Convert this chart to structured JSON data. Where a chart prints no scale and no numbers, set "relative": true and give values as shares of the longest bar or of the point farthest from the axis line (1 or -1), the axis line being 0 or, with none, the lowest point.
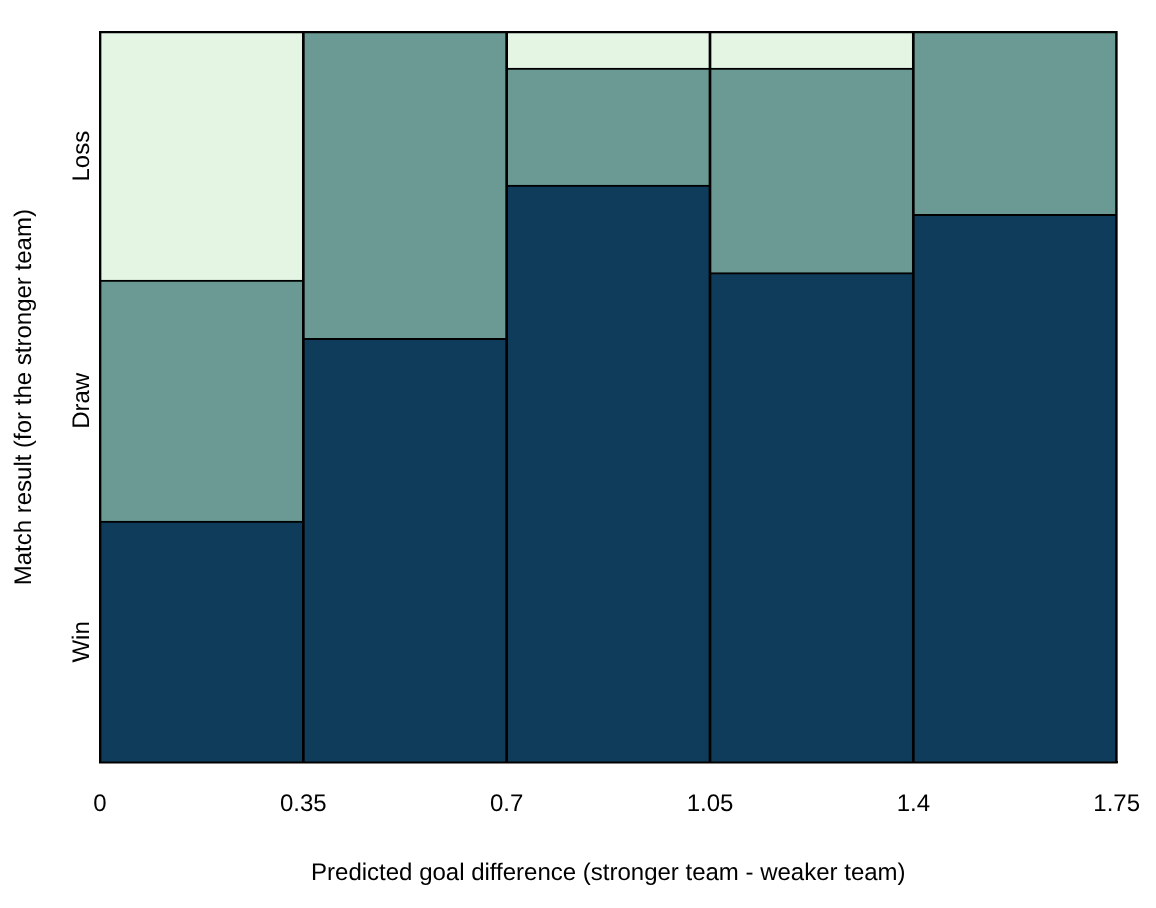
{
  "chart_data": {
    "type": "bar",
    "xlabel": "Predicted goal difference (stronger team - weaker team)",
    "ylabel": "Match result (for the stronger team)",
    "x": [
      0.175,
      0.525,
      0.875,
      1.225,
      1.575
    ],
    "xlim": [
      0,
      1.75
    ],
    "xticks": [
      0,
      0.35,
      0.7,
      1.05,
      1.4,
      1.75
    ],
    "stacked": true,
    "relative": true,
    "grid": false,
    "legend": false,
    "series": [
      {
        "name": "Win",
        "color": "#0f3c5a",
        "values": [
          0.33,
          0.58,
          0.79,
          0.67,
          0.75
        ]
      },
      {
        "name": "Draw",
        "color": "#6b9a94",
        "values": [
          0.33,
          0.42,
          0.16,
          0.28,
          0.25
        ]
      },
      {
        "name": "Loss",
        "color": "#e4f5e4",
        "values": [
          0.34,
          0,
          0.05,
          0.05,
          0
        ]
      }
    ]
  }
}
